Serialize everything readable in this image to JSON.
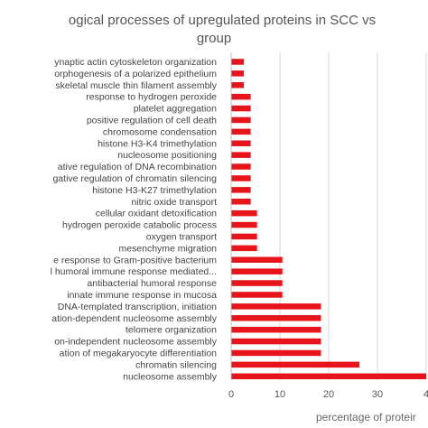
{
  "chart_data": {
    "type": "bar",
    "orientation": "horizontal",
    "title_lines": [
      "ogical processes of upregulated proteins in SCC vs",
      "group"
    ],
    "xlabel": "percentage of proteir",
    "x_ticks": [
      "0",
      "10",
      "20",
      "30",
      "4"
    ],
    "xlim": [
      0,
      40
    ],
    "grid": true,
    "bar_color": "#e8141c",
    "categories": [
      "ynaptic actin cytoskeleton organization",
      "orphogenesis of a polarized epithelium",
      "skeletal muscle thin filament assembly",
      "response to hydrogen peroxide",
      "platelet aggregation",
      "positive regulation of cell death",
      "chromosome condensation",
      "histone H3-K4 trimethylation",
      "nucleosome positioning",
      "ative regulation of DNA recombination",
      "gative regulation of chromatin silencing",
      "histone H3-K27 trimethylation",
      "nitric oxide transport",
      "cellular oxidant detoxification",
      "hydrogen peroxide catabolic process",
      "oxygen transport",
      "mesenchyme migration",
      "e response to Gram-positive bacterium",
      "l humoral immune response mediated...",
      "antibacterial humoral response",
      "innate immune response in mucosa",
      "DNA-templated transcription, initiation",
      "ation-dependent nucleosome assembly",
      "telomere organization",
      "on-independent nucleosome assembly",
      "ation of megakaryocyte differentiation",
      "chromatin silencing",
      "nucleosome assembly"
    ],
    "values": [
      2.6,
      2.6,
      2.6,
      4.0,
      4.0,
      4.0,
      4.0,
      4.0,
      4.0,
      4.0,
      4.0,
      4.0,
      4.0,
      5.3,
      5.3,
      5.3,
      5.3,
      10.5,
      10.5,
      10.5,
      10.5,
      18.4,
      18.4,
      18.4,
      18.4,
      18.4,
      26.3,
      40.0
    ]
  }
}
